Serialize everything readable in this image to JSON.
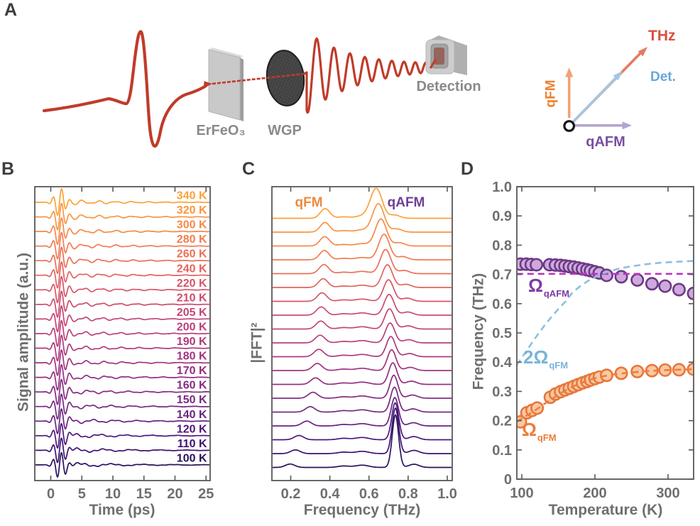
{
  "figure": {
    "panel_labels": [
      "A",
      "B",
      "C",
      "D"
    ]
  },
  "panelA": {
    "sample_label": "ErFeO₃",
    "polarizer_label": "WGP",
    "detection_label": "Detection",
    "vector_diagram": {
      "thz_label": "THz",
      "det_label": "Det.",
      "qfm_label": "qFM",
      "qafm_label": "qAFM"
    },
    "colors": {
      "beam_red": "#c03b2b",
      "thz_arrow": "#e57a5e",
      "det_arrow": "#a5c6e2",
      "qfm_arrow": "#f2a176",
      "qafm_arrow": "#b3a4cf",
      "thz_text": "#d94f3f",
      "det_text": "#68a8d8",
      "qfm_text": "#f08030",
      "qafm_text": "#7a4fa0",
      "component_gray": "#c9c9c9",
      "label_gray": "#8a8a8a",
      "axis_gray": "#58585a",
      "tick_text_gray": "#6f6f6f"
    }
  },
  "chart_data": [
    {
      "id": "panelB",
      "type": "line",
      "title": "",
      "xlabel": "Time (ps)",
      "ylabel": "Signal amplitude (a.u.)",
      "xlim": [
        -2.6,
        25.8
      ],
      "x_ticks": [
        0,
        5,
        10,
        15,
        20,
        25
      ],
      "x_tick_labels": [
        "0",
        "5",
        "10",
        "15",
        "20",
        "25"
      ],
      "trace_labels": [
        "340 K",
        "320 K",
        "300 K",
        "280 K",
        "260 K",
        "240 K",
        "220 K",
        "210 K",
        "205 K",
        "200 K",
        "190 K",
        "180 K",
        "170 K",
        "160 K",
        "150 K",
        "140 K",
        "120 K",
        "110 K",
        "100 K"
      ],
      "temperatures_K": [
        340,
        320,
        300,
        280,
        260,
        240,
        220,
        210,
        205,
        200,
        190,
        180,
        170,
        160,
        150,
        140,
        120,
        110,
        100
      ],
      "trace_colors": [
        "#fba238",
        "#f99540",
        "#f68948",
        "#f17d51",
        "#ea7057",
        "#e2635f",
        "#d75568",
        "#cc4b70",
        "#c44577",
        "#bb3f7c",
        "#ae3a7e",
        "#a03480",
        "#932e81",
        "#852b81",
        "#762a81",
        "#672380",
        "#4f177b",
        "#3d1173",
        "#2a115c"
      ],
      "qFM_freq_THz": [
        0.376,
        0.375,
        0.374,
        0.372,
        0.37,
        0.366,
        0.36,
        0.356,
        0.354,
        0.35,
        0.344,
        0.336,
        0.327,
        0.314,
        0.3,
        0.282,
        0.242,
        0.224,
        0.197
      ],
      "qAFM_freq_THz": [
        0.637,
        0.648,
        0.661,
        0.677,
        0.685,
        0.694,
        0.7,
        0.703,
        0.705,
        0.708,
        0.712,
        0.716,
        0.722,
        0.727,
        0.73,
        0.732,
        0.734,
        0.735,
        0.735
      ]
    },
    {
      "id": "panelC",
      "type": "line",
      "title": "",
      "xlabel": "Frequency (THz)",
      "ylabel": "|FFT|²",
      "xlim": [
        0.105,
        1.025
      ],
      "x_ticks": [
        0.2,
        0.4,
        0.6,
        0.8,
        1.0
      ],
      "x_tick_labels": [
        "0.2",
        "0.4",
        "0.6",
        "0.8",
        "1.0"
      ],
      "peak_labels": {
        "qFM": "qFM",
        "qAFM": "qAFM"
      },
      "temperatures_K": [
        340,
        320,
        300,
        280,
        260,
        240,
        220,
        210,
        205,
        200,
        190,
        180,
        170,
        160,
        150,
        140,
        120,
        110,
        100
      ],
      "trace_colors": [
        "#fba238",
        "#f99540",
        "#f68948",
        "#f17d51",
        "#ea7057",
        "#e2635f",
        "#d75568",
        "#cc4b70",
        "#c44577",
        "#bb3f7c",
        "#ae3a7e",
        "#a03480",
        "#932e81",
        "#852b81",
        "#762a81",
        "#672380",
        "#4f177b",
        "#3d1173",
        "#2a115c"
      ],
      "qFM_peak_THz": [
        0.376,
        0.375,
        0.374,
        0.372,
        0.37,
        0.366,
        0.36,
        0.356,
        0.354,
        0.35,
        0.344,
        0.336,
        0.327,
        0.314,
        0.3,
        0.282,
        0.242,
        0.224,
        0.197
      ],
      "qAFM_peak_THz": [
        0.637,
        0.648,
        0.661,
        0.677,
        0.685,
        0.694,
        0.7,
        0.703,
        0.705,
        0.708,
        0.712,
        0.716,
        0.722,
        0.727,
        0.73,
        0.732,
        0.734,
        0.735,
        0.735
      ],
      "qFM_peak_amp": [
        0.34,
        0.34,
        0.33,
        0.33,
        0.32,
        0.31,
        0.3,
        0.29,
        0.28,
        0.27,
        0.26,
        0.25,
        0.23,
        0.21,
        0.19,
        0.17,
        0.15,
        0.13,
        0.12
      ],
      "qAFM_peak_amp": [
        1.05,
        1.0,
        0.95,
        0.9,
        0.85,
        0.8,
        0.76,
        0.73,
        0.71,
        0.7,
        0.71,
        0.73,
        0.76,
        0.81,
        0.88,
        1.0,
        1.3,
        1.6,
        1.85
      ]
    },
    {
      "id": "panelD",
      "type": "scatter",
      "title": "",
      "xlabel": "Temperature (K)",
      "ylabel": "Frequency (THz)",
      "xlim": [
        93,
        335
      ],
      "ylim": [
        0,
        1.0
      ],
      "x_ticks": [
        100,
        200,
        300
      ],
      "x_tick_labels": [
        "100",
        "200",
        "300"
      ],
      "y_ticks": [
        0,
        0.1,
        0.2,
        0.3,
        0.4,
        0.5,
        0.6,
        0.7,
        0.8,
        0.9,
        1.0
      ],
      "y_tick_labels": [
        "0",
        "0.1",
        "0.2",
        "0.3",
        "0.4",
        "0.5",
        "0.6",
        "0.7",
        "0.8",
        "0.9",
        "1.0"
      ],
      "series": [
        {
          "name": "Omega_qAFM_data",
          "kind": "scatter",
          "marker_fill": "#cfa9dc",
          "marker_edge": "#6b3a86",
          "x": [
            98,
            106,
            113,
            120,
            138,
            146,
            153,
            159,
            165,
            171,
            177,
            183,
            189,
            194,
            200,
            206,
            216,
            236,
            258,
            278,
            296,
            315,
            335
          ],
          "y": [
            0.735,
            0.735,
            0.734,
            0.733,
            0.733,
            0.732,
            0.731,
            0.729,
            0.727,
            0.725,
            0.722,
            0.719,
            0.716,
            0.713,
            0.709,
            0.705,
            0.697,
            0.692,
            0.681,
            0.668,
            0.66,
            0.648,
            0.635
          ]
        },
        {
          "name": "Omega_qFM_data",
          "kind": "scatter",
          "marker_fill": "#f9c9a4",
          "marker_edge": "#e8763b",
          "x": [
            98,
            107,
            114,
            121,
            139,
            146,
            153,
            159,
            165,
            171,
            177,
            183,
            189,
            194,
            200,
            206,
            216,
            236,
            258,
            278,
            296,
            315,
            335
          ],
          "y": [
            0.196,
            0.227,
            0.235,
            0.243,
            0.28,
            0.291,
            0.299,
            0.305,
            0.311,
            0.317,
            0.323,
            0.329,
            0.334,
            0.339,
            0.344,
            0.349,
            0.355,
            0.362,
            0.368,
            0.371,
            0.373,
            0.374,
            0.376
          ]
        },
        {
          "name": "Omega_qAFM_fit",
          "kind": "dashed-line",
          "color": "#bb35c0",
          "x": [
            93,
            335
          ],
          "y": [
            0.702,
            0.702
          ]
        },
        {
          "name": "two_Omega_qFM_fit",
          "kind": "dashed-line",
          "color": "#8cc0dc",
          "x": [
            93,
            100,
            110,
            120,
            130,
            140,
            150,
            160,
            170,
            180,
            190,
            200,
            210,
            220,
            235,
            250,
            270,
            290,
            310,
            325,
            335
          ],
          "y": [
            0.39,
            0.415,
            0.452,
            0.488,
            0.522,
            0.553,
            0.582,
            0.608,
            0.64,
            0.66,
            0.677,
            0.691,
            0.702,
            0.711,
            0.721,
            0.728,
            0.735,
            0.74,
            0.743,
            0.745,
            0.746
          ]
        },
        {
          "name": "Omega_qFM_fit",
          "kind": "dashed-line",
          "color": "#ed7d3a",
          "x": [
            93,
            100,
            110,
            120,
            130,
            140,
            150,
            160,
            170,
            180,
            190,
            200,
            210,
            220,
            235,
            250,
            270,
            290,
            310,
            325,
            335
          ],
          "y": [
            0.196,
            0.207,
            0.222,
            0.238,
            0.256,
            0.272,
            0.289,
            0.304,
            0.317,
            0.328,
            0.337,
            0.345,
            0.351,
            0.356,
            0.361,
            0.365,
            0.369,
            0.372,
            0.374,
            0.375,
            0.376
          ]
        }
      ],
      "annotations": [
        {
          "base": "Ω",
          "sub": "qAFM",
          "color": "#7d3ca3"
        },
        {
          "base": "2Ω",
          "sub": "qFM",
          "color": "#79b4d9"
        },
        {
          "base": "Ω",
          "sub": "qFM",
          "color": "#ed7d3a"
        }
      ]
    }
  ]
}
